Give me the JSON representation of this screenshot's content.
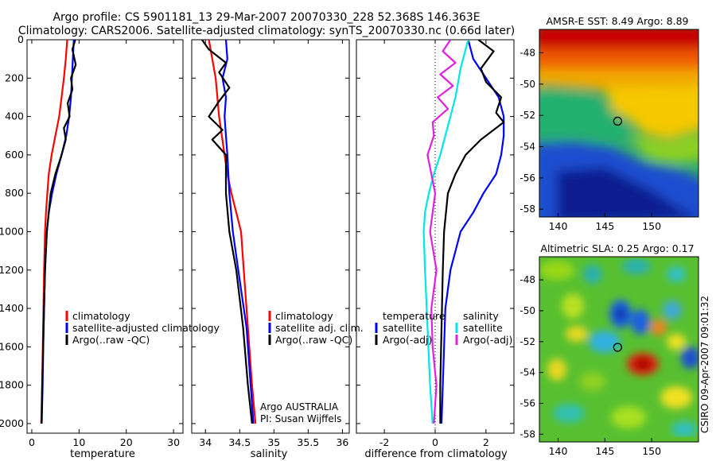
{
  "figure": {
    "title_line1": "Argo profile: CS 5901181_13 29-Mar-2007 20070330_228 52.368S 146.363E",
    "title_line2": "Climatology: CARS2006. Satellite-adjusted climatology: synTS_20070330.nc (0.66d later)",
    "credit": "CSIRO 09-Apr-2007 09:01:32",
    "note_line1": "Argo AUSTRALIA",
    "note_line2": "PI: Susan Wijffels"
  },
  "colors": {
    "climatology": "#ff0000",
    "satellite": "#0000ff",
    "argo": "#000000",
    "argo_sal": "#00e5e5",
    "argo_adj": "#e020e0"
  },
  "chart_data": [
    {
      "type": "line",
      "id": "temperature",
      "xlabel": "temperature",
      "ylabel": "",
      "xlim": [
        -1,
        32
      ],
      "ylim": [
        2050,
        0
      ],
      "xticks": [
        0,
        10,
        20,
        30
      ],
      "yticks": [
        0,
        200,
        400,
        600,
        800,
        1000,
        1200,
        1400,
        1600,
        1800,
        2000
      ],
      "legend": [
        "climatology",
        "satellite-adjusted climatology",
        "Argo(..raw -QC)"
      ],
      "series": [
        {
          "name": "climatology",
          "color": "red",
          "x": [
            7.5,
            7.2,
            6.8,
            6.3,
            5.8,
            5.0,
            4.2,
            3.6,
            3.3,
            3.0,
            2.8,
            2.6,
            2.4,
            2.2,
            2.0
          ],
          "y": [
            0,
            100,
            200,
            300,
            400,
            500,
            600,
            700,
            800,
            900,
            1000,
            1200,
            1500,
            1800,
            2000
          ]
        },
        {
          "name": "satellite-adjusted climatology",
          "color": "blue",
          "x": [
            8.9,
            8.7,
            8.5,
            8.3,
            7.9,
            7.3,
            6.3,
            5.2,
            4.3,
            3.6,
            3.2,
            2.8,
            2.5,
            2.3,
            2.1
          ],
          "y": [
            0,
            100,
            200,
            300,
            400,
            500,
            600,
            700,
            800,
            900,
            1000,
            1200,
            1500,
            1800,
            2000
          ]
        },
        {
          "name": "Argo(..raw -QC)",
          "color": "black",
          "x": [
            9.2,
            8.6,
            9.3,
            8.3,
            8.6,
            7.6,
            8.0,
            6.8,
            7.2,
            6.3,
            5.0,
            4.0,
            3.2,
            2.8,
            2.5,
            2.2,
            2.1
          ],
          "y": [
            0,
            50,
            130,
            200,
            260,
            330,
            400,
            460,
            520,
            600,
            700,
            800,
            1000,
            1200,
            1500,
            1800,
            2000
          ]
        }
      ]
    },
    {
      "type": "line",
      "id": "salinity",
      "xlabel": "salinity",
      "ylabel": "",
      "xlim": [
        33.8,
        36.1
      ],
      "ylim": [
        2050,
        0
      ],
      "xticks": [
        34,
        34.5,
        35,
        35.5,
        36
      ],
      "legend": [
        "climatology",
        "satellite adj. clim.",
        "Argo(..raw -QC)"
      ],
      "series": [
        {
          "name": "climatology",
          "color": "red",
          "x": [
            34.05,
            34.1,
            34.15,
            34.2,
            34.28,
            34.32,
            34.38,
            34.45,
            34.52,
            34.56,
            34.62,
            34.68,
            34.73
          ],
          "y": [
            0,
            100,
            200,
            400,
            600,
            700,
            800,
            900,
            1000,
            1200,
            1500,
            1800,
            2000
          ]
        },
        {
          "name": "satellite adj. clim.",
          "color": "blue",
          "x": [
            34.3,
            34.32,
            34.25,
            34.3,
            34.28,
            34.3,
            34.32,
            34.35,
            34.4,
            34.48,
            34.6,
            34.7
          ],
          "y": [
            0,
            100,
            200,
            300,
            400,
            500,
            600,
            800,
            1000,
            1200,
            1500,
            2000
          ]
        },
        {
          "name": "Argo(..raw -QC)",
          "color": "black",
          "x": [
            33.95,
            34.05,
            34.3,
            34.2,
            34.35,
            34.2,
            34.05,
            34.25,
            34.1,
            34.3,
            34.3,
            34.35,
            34.45,
            34.55,
            34.62,
            34.68
          ],
          "y": [
            0,
            50,
            120,
            170,
            250,
            320,
            400,
            470,
            520,
            600,
            800,
            1000,
            1200,
            1500,
            1800,
            2000
          ]
        }
      ]
    },
    {
      "type": "line",
      "id": "difference",
      "xlabel": "difference from climatology",
      "ylabel": "",
      "xlim": [
        -3.1,
        3.1
      ],
      "ylim": [
        2050,
        0
      ],
      "xticks": [
        -2,
        0,
        2
      ],
      "legend": [
        "temperature",
        "satellite",
        "Argo(-adj)",
        "salinity",
        "satellite",
        "Argo(-adj)"
      ],
      "series": [
        {
          "name": "temperature satellite",
          "color": "blue",
          "x": [
            1.3,
            1.5,
            2.0,
            2.5,
            2.7,
            2.7,
            2.6,
            2.4,
            1.9,
            1.5,
            1.0,
            0.6,
            0.4,
            0.35,
            0.3,
            0.25
          ],
          "y": [
            0,
            100,
            200,
            300,
            400,
            500,
            600,
            700,
            800,
            900,
            1000,
            1200,
            1400,
            1600,
            1800,
            2000
          ]
        },
        {
          "name": "temperature Argo(-adj)",
          "color": "black",
          "x": [
            1.7,
            2.3,
            1.8,
            2.0,
            2.6,
            2.4,
            2.7,
            1.8,
            1.2,
            0.8,
            0.5,
            0.35,
            0.3,
            0.25,
            0.2,
            0.2
          ],
          "y": [
            0,
            60,
            150,
            220,
            300,
            380,
            430,
            520,
            600,
            700,
            800,
            1000,
            1200,
            1500,
            1800,
            2000
          ]
        },
        {
          "name": "salinity satellite",
          "color": "cyan",
          "x": [
            1.3,
            1.0,
            0.8,
            0.6,
            0.4,
            0.2,
            -0.05,
            -0.25,
            -0.4,
            -0.45,
            -0.4,
            -0.3,
            -0.2,
            -0.1
          ],
          "y": [
            0,
            150,
            300,
            400,
            500,
            600,
            700,
            800,
            900,
            1000,
            1200,
            1500,
            1800,
            2000
          ]
        },
        {
          "name": "salinity Argo(-adj)",
          "color": "magenta",
          "x": [
            0.6,
            0.3,
            0.8,
            0.2,
            0.7,
            0.1,
            0.5,
            -0.1,
            -0.05,
            -0.3,
            0.0,
            -0.2,
            0.05,
            -0.15,
            -0.1,
            0.05,
            -0.05
          ],
          "y": [
            0,
            60,
            120,
            180,
            240,
            300,
            360,
            430,
            500,
            600,
            800,
            1000,
            1200,
            1400,
            1600,
            1800,
            2000
          ]
        }
      ]
    },
    {
      "type": "heatmap",
      "id": "sst_map",
      "title": "AMSR-E SST: 8.49 Argo: 8.89",
      "xlim": [
        138,
        155
      ],
      "ylim": [
        -58.5,
        -46.5
      ],
      "xticks": [
        140,
        145,
        150
      ],
      "yticks": [
        -48,
        -50,
        -52,
        -54,
        -56,
        -58
      ],
      "marker": {
        "lon": 146.36,
        "lat": -52.37
      }
    },
    {
      "type": "heatmap",
      "id": "sla_map",
      "title": "Altimetric SLA: 0.25 Argo: 0.17",
      "xlim": [
        138,
        155
      ],
      "ylim": [
        -58.5,
        -46.5
      ],
      "xticks": [
        140,
        145,
        150
      ],
      "yticks": [
        -48,
        -50,
        -52,
        -54,
        -56,
        -58
      ],
      "marker": {
        "lon": 146.36,
        "lat": -52.37
      }
    }
  ]
}
